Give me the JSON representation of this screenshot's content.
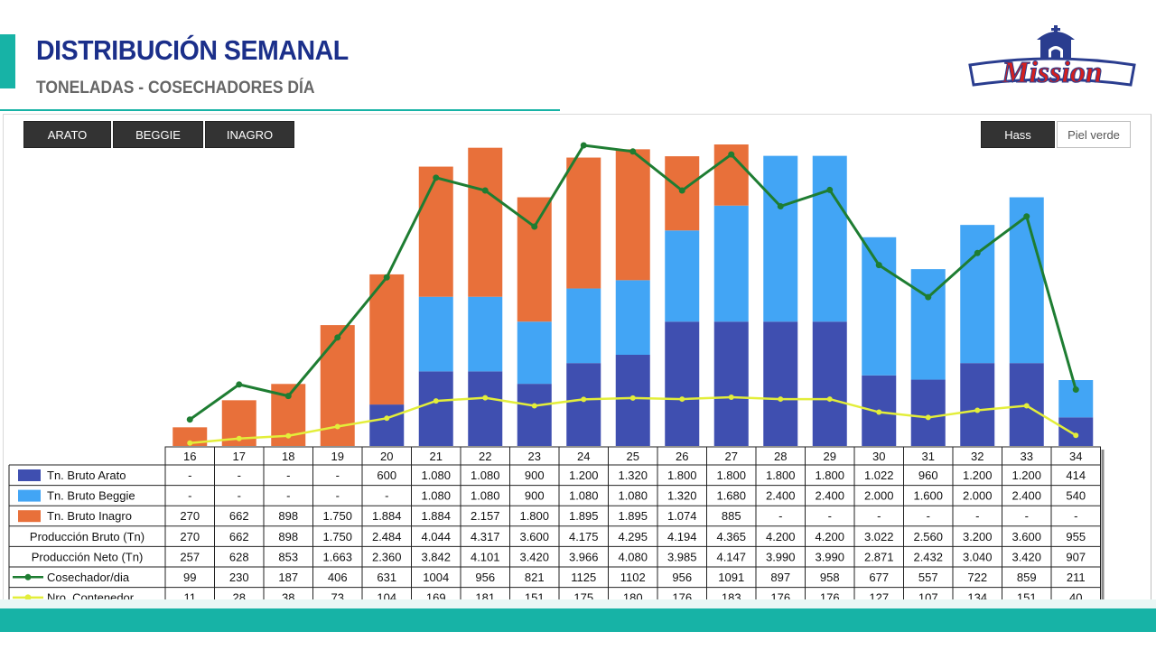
{
  "header": {
    "title": "DISTRIBUCIÓN SEMANAL",
    "subtitle": "TONELADAS - COSECHADORES DÍA"
  },
  "logo": {
    "text": "Mission"
  },
  "filters": {
    "left": [
      "ARATO",
      "BEGGIE",
      "INAGRO"
    ],
    "right": [
      "Hass",
      "Piel verde"
    ],
    "right_active": "Hass"
  },
  "colors": {
    "arato": "#3f4fb0",
    "beggie": "#42a5f5",
    "inagro": "#e8703a",
    "cosechador": "#1e7d32",
    "contenedor": "#e3ee3a",
    "accent": "#17b3a6",
    "title": "#1b2f8a"
  },
  "chart_data": {
    "type": "bar",
    "stacked": true,
    "categories": [
      "16",
      "17",
      "18",
      "19",
      "20",
      "21",
      "22",
      "23",
      "24",
      "25",
      "26",
      "27",
      "28",
      "29",
      "30",
      "31",
      "32",
      "33",
      "34"
    ],
    "series": [
      {
        "name": "Tn. Bruto Arato",
        "kind": "bar",
        "color": "#3f4fb0",
        "values": [
          0,
          0,
          0,
          0,
          600,
          1080,
          1080,
          900,
          1200,
          1320,
          1800,
          1800,
          1800,
          1800,
          1022,
          960,
          1200,
          1200,
          414
        ],
        "labels": [
          "-",
          "-",
          "-",
          "-",
          "600",
          "1.080",
          "1.080",
          "900",
          "1.200",
          "1.320",
          "1.800",
          "1.800",
          "1.800",
          "1.800",
          "1.022",
          "960",
          "1.200",
          "1.200",
          "414"
        ]
      },
      {
        "name": "Tn. Bruto Beggie",
        "kind": "bar",
        "color": "#42a5f5",
        "values": [
          0,
          0,
          0,
          0,
          0,
          1080,
          1080,
          900,
          1080,
          1080,
          1320,
          1680,
          2400,
          2400,
          2000,
          1600,
          2000,
          2400,
          540
        ],
        "labels": [
          "-",
          "-",
          "-",
          "-",
          "-",
          "1.080",
          "1.080",
          "900",
          "1.080",
          "1.080",
          "1.320",
          "1.680",
          "2.400",
          "2.400",
          "2.000",
          "1.600",
          "2.000",
          "2.400",
          "540"
        ]
      },
      {
        "name": "Tn. Bruto Inagro",
        "kind": "bar",
        "color": "#e8703a",
        "values": [
          270,
          662,
          898,
          1750,
          1884,
          1884,
          2157,
          1800,
          1895,
          1895,
          1074,
          885,
          0,
          0,
          0,
          0,
          0,
          0,
          0
        ],
        "labels": [
          "270",
          "662",
          "898",
          "1.750",
          "1.884",
          "1.884",
          "2.157",
          "1.800",
          "1.895",
          "1.895",
          "1.074",
          "885",
          "-",
          "-",
          "-",
          "-",
          "-",
          "-",
          "-"
        ]
      },
      {
        "name": "Producción Bruto (Tn)",
        "kind": "table",
        "values": [
          270,
          662,
          898,
          1750,
          2484,
          4044,
          4317,
          3600,
          4175,
          4295,
          4194,
          4365,
          4200,
          4200,
          3022,
          2560,
          3200,
          3600,
          955
        ],
        "labels": [
          "270",
          "662",
          "898",
          "1.750",
          "2.484",
          "4.044",
          "4.317",
          "3.600",
          "4.175",
          "4.295",
          "4.194",
          "4.365",
          "4.200",
          "4.200",
          "3.022",
          "2.560",
          "3.200",
          "3.600",
          "955"
        ]
      },
      {
        "name": "Producción Neto (Tn)",
        "kind": "table",
        "values": [
          257,
          628,
          853,
          1663,
          2360,
          3842,
          4101,
          3420,
          3966,
          4080,
          3985,
          4147,
          3990,
          3990,
          2871,
          2432,
          3040,
          3420,
          907
        ],
        "labels": [
          "257",
          "628",
          "853",
          "1.663",
          "2.360",
          "3.842",
          "4.101",
          "3.420",
          "3.966",
          "4.080",
          "3.985",
          "4.147",
          "3.990",
          "3.990",
          "2.871",
          "2.432",
          "3.040",
          "3.420",
          "907"
        ]
      },
      {
        "name": "Cosechador/dia",
        "kind": "line",
        "color": "#1e7d32",
        "values": [
          99,
          230,
          187,
          406,
          631,
          1004,
          956,
          821,
          1125,
          1102,
          956,
          1091,
          897,
          958,
          677,
          557,
          722,
          859,
          211
        ],
        "labels": [
          "99",
          "230",
          "187",
          "406",
          "631",
          "1004",
          "956",
          "821",
          "1125",
          "1102",
          "956",
          "1091",
          "897",
          "958",
          "677",
          "557",
          "722",
          "859",
          "211"
        ]
      },
      {
        "name": "Nro. Contenedor",
        "kind": "line",
        "color": "#e3ee3a",
        "values": [
          11,
          28,
          38,
          73,
          104,
          169,
          181,
          151,
          175,
          180,
          176,
          183,
          176,
          176,
          127,
          107,
          134,
          151,
          40
        ],
        "labels": [
          "11",
          "28",
          "38",
          "73",
          "104",
          "169",
          "181",
          "151",
          "175",
          "180",
          "176",
          "183",
          "176",
          "176",
          "127",
          "107",
          "134",
          "151",
          "40"
        ]
      }
    ]
  }
}
